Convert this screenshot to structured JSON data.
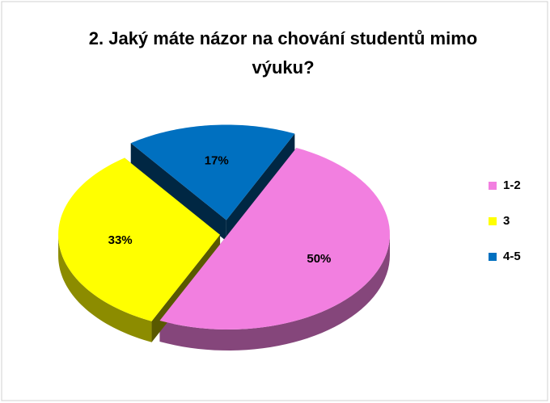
{
  "chart_data": {
    "type": "pie3d",
    "title": "2. Jaký máte názor na chování studentů mimo výuku?",
    "categories": [
      "1-2",
      "3",
      "4-5"
    ],
    "values": [
      50,
      33,
      17
    ],
    "value_labels": [
      "50%",
      "33%",
      "17%"
    ],
    "colors": [
      "#f27fe0",
      "#ffff00",
      "#0070c0"
    ],
    "legend": "right"
  }
}
